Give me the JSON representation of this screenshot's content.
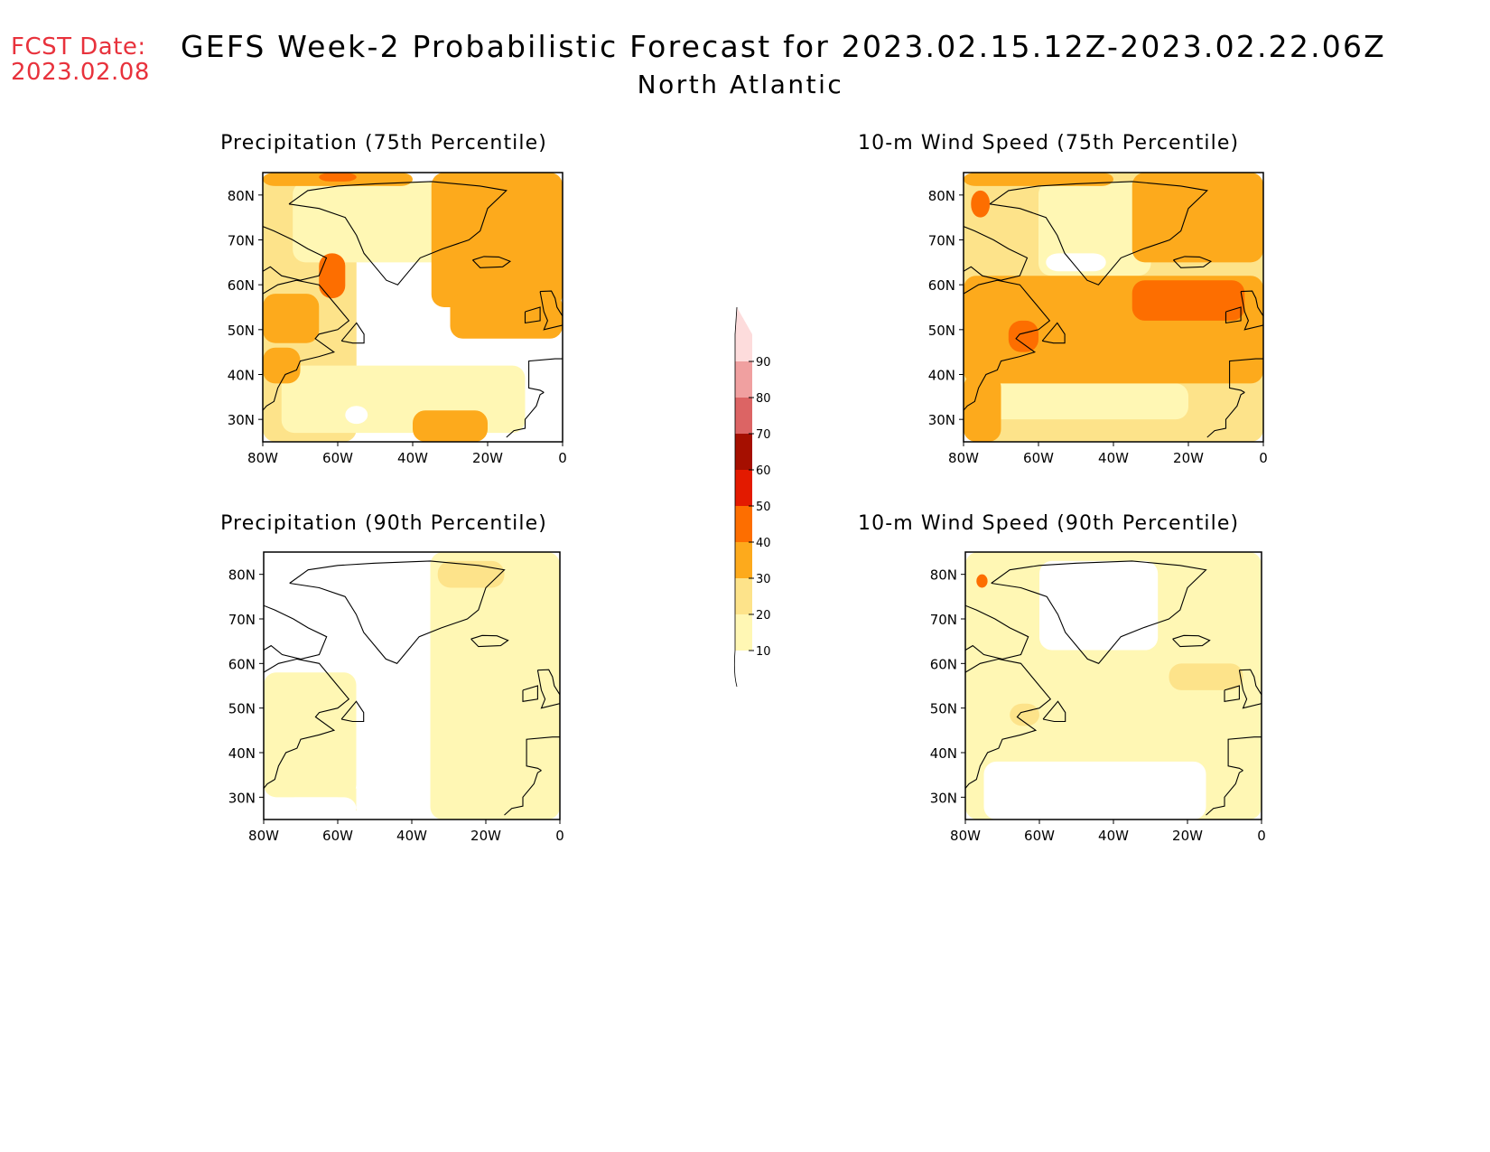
{
  "header": {
    "fcst_label": "FCST Date:",
    "fcst_date": "2023.02.08",
    "title": "GEFS Week-2 Probabilistic Forecast for 2023.02.15.12Z-2023.02.22.06Z",
    "subtitle": "North Atlantic"
  },
  "colors": {
    "fcst_text": "#e8323c",
    "levels": [
      "#ffffff",
      "#fff7b4",
      "#fde38a",
      "#fdaa1c",
      "#fd6e00",
      "#e31a00",
      "#a50f00",
      "#dc6464",
      "#f0a0a0",
      "#fddcdc"
    ]
  },
  "colorbar": {
    "ticks": [
      "10",
      "20",
      "30",
      "40",
      "50",
      "60",
      "70",
      "80",
      "90"
    ],
    "bounds": [
      10,
      20,
      30,
      40,
      50,
      60,
      70,
      80,
      90
    ]
  },
  "map_axes": {
    "lon_labels": [
      "80W",
      "60W",
      "40W",
      "20W",
      "0"
    ],
    "lon_values": [
      -80,
      -60,
      -40,
      -20,
      0
    ],
    "lat_labels": [
      "30N",
      "40N",
      "50N",
      "60N",
      "70N",
      "80N"
    ],
    "lat_values": [
      30,
      40,
      50,
      60,
      70,
      80
    ],
    "lon_range": [
      -80,
      0
    ],
    "lat_range": [
      25,
      85
    ]
  },
  "panels": [
    {
      "title": "Precipitation (75th Percentile)",
      "fields": [
        {
          "level": 2,
          "box": [
            -80,
            -55,
            25,
            85
          ]
        },
        {
          "level": 1,
          "box": [
            -72,
            -30,
            65,
            83
          ]
        },
        {
          "level": 1,
          "box": [
            -75,
            -10,
            27,
            42
          ]
        },
        {
          "level": 3,
          "box": [
            -35,
            0,
            55,
            85
          ]
        },
        {
          "level": 3,
          "box": [
            -30,
            0,
            48,
            58
          ]
        },
        {
          "level": 3,
          "box": [
            -80,
            -65,
            47,
            58
          ]
        },
        {
          "level": 3,
          "box": [
            -80,
            -40,
            82,
            85
          ]
        },
        {
          "level": 4,
          "box": [
            -65,
            -58,
            57,
            67
          ]
        },
        {
          "level": 4,
          "box": [
            -65,
            -55,
            83,
            85
          ]
        },
        {
          "level": 3,
          "box": [
            -40,
            -20,
            25,
            32
          ]
        },
        {
          "level": 3,
          "box": [
            -80,
            -70,
            38,
            46
          ]
        },
        {
          "level": 0,
          "box": [
            -10,
            0,
            25,
            30
          ]
        },
        {
          "level": 0,
          "box": [
            -58,
            -52,
            29,
            33
          ]
        }
      ]
    },
    {
      "title": "10-m Wind Speed (75th Percentile)",
      "fields": [
        {
          "level": 2,
          "box": [
            -80,
            0,
            25,
            85
          ]
        },
        {
          "level": 1,
          "box": [
            -60,
            -30,
            62,
            83
          ]
        },
        {
          "level": 1,
          "box": [
            -75,
            -20,
            30,
            38
          ]
        },
        {
          "level": 3,
          "box": [
            -80,
            0,
            38,
            62
          ]
        },
        {
          "level": 3,
          "box": [
            -35,
            0,
            65,
            85
          ]
        },
        {
          "level": 4,
          "box": [
            -35,
            -5,
            52,
            61
          ]
        },
        {
          "level": 4,
          "box": [
            -68,
            -60,
            45,
            52
          ]
        },
        {
          "level": 4,
          "box": [
            -78,
            -73,
            75,
            81
          ]
        },
        {
          "level": 3,
          "box": [
            -80,
            -40,
            82,
            85
          ]
        },
        {
          "level": 3,
          "box": [
            -80,
            -70,
            25,
            40
          ]
        },
        {
          "level": 0,
          "box": [
            -58,
            -42,
            63,
            67
          ]
        }
      ]
    },
    {
      "title": "Precipitation (90th Percentile)",
      "fields": [
        {
          "level": 1,
          "box": [
            -35,
            0,
            25,
            85
          ]
        },
        {
          "level": 1,
          "box": [
            -80,
            -55,
            30,
            58
          ]
        },
        {
          "level": 1,
          "box": [
            -60,
            -35,
            27,
            32
          ]
        },
        {
          "level": 2,
          "box": [
            -33,
            -15,
            77,
            83
          ]
        },
        {
          "level": 0,
          "box": [
            -70,
            -40,
            65,
            82
          ]
        },
        {
          "level": 0,
          "box": [
            -55,
            -35,
            25,
            55
          ]
        },
        {
          "level": 0,
          "box": [
            -75,
            -55,
            25,
            30
          ]
        }
      ]
    },
    {
      "title": "10-m Wind Speed (90th Percentile)",
      "fields": [
        {
          "level": 1,
          "box": [
            -80,
            0,
            25,
            85
          ]
        },
        {
          "level": 0,
          "box": [
            -60,
            -28,
            63,
            83
          ]
        },
        {
          "level": 0,
          "box": [
            -75,
            -15,
            25,
            38
          ]
        },
        {
          "level": 2,
          "box": [
            -25,
            -5,
            54,
            60
          ]
        },
        {
          "level": 2,
          "box": [
            -68,
            -60,
            46,
            51
          ]
        },
        {
          "level": 4,
          "box": [
            -77,
            -74,
            77,
            80
          ]
        }
      ]
    }
  ],
  "coastlines": [
    [
      [
        -73,
        78
      ],
      [
        -68,
        81
      ],
      [
        -60,
        82
      ],
      [
        -50,
        82.5
      ],
      [
        -35,
        83
      ],
      [
        -22,
        82
      ],
      [
        -15,
        81
      ],
      [
        -20,
        77
      ],
      [
        -22,
        72
      ],
      [
        -25,
        70
      ],
      [
        -32,
        68
      ],
      [
        -38,
        66
      ],
      [
        -42,
        62
      ],
      [
        -44,
        60
      ],
      [
        -47,
        61
      ],
      [
        -50,
        64
      ],
      [
        -53,
        67
      ],
      [
        -55,
        71
      ],
      [
        -58,
        75
      ],
      [
        -65,
        77
      ],
      [
        -73,
        78
      ]
    ],
    [
      [
        -24,
        65.5
      ],
      [
        -21,
        66.3
      ],
      [
        -17,
        66.2
      ],
      [
        -14,
        65.2
      ],
      [
        -16,
        64
      ],
      [
        -22,
        63.8
      ],
      [
        -24,
        65.5
      ]
    ],
    [
      [
        -80,
        73
      ],
      [
        -77,
        72
      ],
      [
        -72,
        70
      ],
      [
        -68,
        68
      ],
      [
        -63,
        66
      ],
      [
        -65,
        62
      ],
      [
        -70,
        61
      ],
      [
        -75,
        62
      ],
      [
        -78,
        64
      ],
      [
        -80,
        63
      ]
    ],
    [
      [
        -80,
        58
      ],
      [
        -76,
        60
      ],
      [
        -71,
        61
      ],
      [
        -65,
        60
      ],
      [
        -62,
        57
      ],
      [
        -60,
        55
      ],
      [
        -57,
        52
      ],
      [
        -60,
        50
      ],
      [
        -65,
        49
      ],
      [
        -66,
        48
      ],
      [
        -61,
        45
      ],
      [
        -65,
        44
      ],
      [
        -70,
        43
      ],
      [
        -71,
        41
      ],
      [
        -74,
        40
      ],
      [
        -76,
        37
      ],
      [
        -77,
        34
      ],
      [
        -79,
        33
      ],
      [
        -80,
        32
      ]
    ],
    [
      [
        -59,
        47.5
      ],
      [
        -55,
        51.5
      ],
      [
        -53,
        49
      ],
      [
        -53,
        47
      ],
      [
        -56,
        47
      ],
      [
        -59,
        47.5
      ]
    ],
    [
      [
        -6,
        58.5
      ],
      [
        -3,
        58.6
      ],
      [
        -2,
        57
      ],
      [
        -1.5,
        55
      ],
      [
        0,
        53
      ],
      [
        0,
        51
      ],
      [
        -5,
        50
      ],
      [
        -4,
        52
      ],
      [
        -5,
        54
      ],
      [
        -6,
        58.5
      ]
    ],
    [
      [
        -10,
        54
      ],
      [
        -6,
        55
      ],
      [
        -6,
        52
      ],
      [
        -10,
        51.5
      ],
      [
        -10,
        54
      ]
    ],
    [
      [
        0,
        43.5
      ],
      [
        -2,
        43.5
      ],
      [
        -9,
        43
      ],
      [
        -9,
        39
      ],
      [
        -9,
        37
      ],
      [
        -6,
        36.5
      ],
      [
        -5,
        36
      ]
    ],
    [
      [
        -5,
        36
      ],
      [
        -6,
        35.5
      ],
      [
        -7,
        33
      ],
      [
        -10,
        30
      ],
      [
        -10,
        28
      ],
      [
        -13,
        27.5
      ],
      [
        -15,
        26
      ]
    ]
  ]
}
